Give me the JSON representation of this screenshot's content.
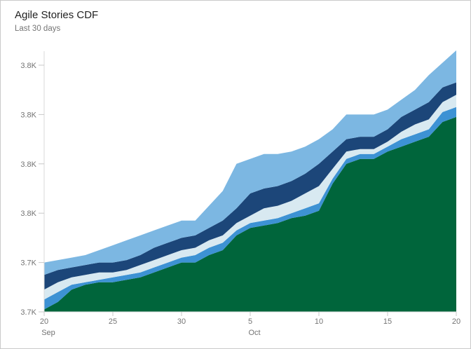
{
  "card": {
    "title": "Agile Stories CDF",
    "subtitle": "Last 30 days"
  },
  "colors": {
    "card_border": "#c9c9c9",
    "title_text": "#212121",
    "subtitle_text": "#757575",
    "axis_line": "#d9d9d9",
    "tick_mark": "#c8c8c8",
    "axis_label": "#737373",
    "background": "#ffffff"
  },
  "chart_data": {
    "type": "area",
    "stacked": true,
    "title": "Agile Stories CDF",
    "subtitle": "Last 30 days",
    "grid": false,
    "legend_position": "none",
    "x": [
      "Sep 20",
      "Sep 21",
      "Sep 22",
      "Sep 23",
      "Sep 24",
      "Sep 25",
      "Sep 26",
      "Sep 27",
      "Sep 28",
      "Sep 29",
      "Sep 30",
      "Oct 1",
      "Oct 2",
      "Oct 3",
      "Oct 4",
      "Oct 5",
      "Oct 6",
      "Oct 7",
      "Oct 8",
      "Oct 9",
      "Oct 10",
      "Oct 11",
      "Oct 12",
      "Oct 13",
      "Oct 14",
      "Oct 15",
      "Oct 16",
      "Oct 17",
      "Oct 18",
      "Oct 19",
      "Oct 20"
    ],
    "y_axis": {
      "min": 3720,
      "max": 3820,
      "ticks": [
        {
          "value": 3720,
          "label": "3.7K"
        },
        {
          "value": 3740,
          "label": "3.7K"
        },
        {
          "value": 3760,
          "label": "3.8K"
        },
        {
          "value": 3780,
          "label": "3.8K"
        },
        {
          "value": 3800,
          "label": "3.8K"
        },
        {
          "value": 3820,
          "label": "3.8K"
        }
      ]
    },
    "x_axis": {
      "ticks": [
        {
          "index": 0,
          "label": "20",
          "sublabel": "Sep"
        },
        {
          "index": 5,
          "label": "25",
          "sublabel": ""
        },
        {
          "index": 10,
          "label": "30",
          "sublabel": ""
        },
        {
          "index": 15,
          "label": "5",
          "sublabel": "Oct"
        },
        {
          "index": 20,
          "label": "10",
          "sublabel": ""
        },
        {
          "index": 25,
          "label": "15",
          "sublabel": ""
        },
        {
          "index": 30,
          "label": "20",
          "sublabel": ""
        }
      ]
    },
    "series_note": "Stacked bottom-to-top; 'cumulative' arrays are the plotted top boundary of each band (cumulative counts).",
    "series": [
      {
        "name": "band-1-dark-green-bottom",
        "color": "#00653B",
        "cumulative": [
          3721,
          3724,
          3729,
          3731,
          3732,
          3732,
          3733,
          3734,
          3736,
          3738,
          3740,
          3740,
          3743,
          3745,
          3751,
          3754,
          3755,
          3756,
          3758,
          3759,
          3761,
          3772,
          3780,
          3782,
          3782,
          3785,
          3787,
          3789,
          3791,
          3797,
          3799
        ]
      },
      {
        "name": "band-2-medium-blue",
        "color": "#3D92D4",
        "cumulative": [
          3725,
          3728,
          3731,
          3732,
          3733,
          3734,
          3735,
          3736,
          3738,
          3740,
          3742,
          3743,
          3746,
          3748,
          3753,
          3756,
          3757,
          3758,
          3760,
          3762,
          3764,
          3774,
          3782,
          3784,
          3784,
          3787,
          3790,
          3792,
          3794,
          3801,
          3803
        ]
      },
      {
        "name": "band-3-pale-blue",
        "color": "#D8E9F1",
        "cumulative": [
          3729,
          3732,
          3734,
          3735,
          3736,
          3736,
          3737,
          3739,
          3741,
          3743,
          3745,
          3746,
          3749,
          3751,
          3756,
          3759,
          3762,
          3763,
          3765,
          3768,
          3771,
          3778,
          3785,
          3786,
          3786,
          3789,
          3793,
          3796,
          3798,
          3805,
          3808
        ]
      },
      {
        "name": "band-4-dark-navy-blue",
        "color": "#1C4679",
        "cumulative": [
          3735,
          3737,
          3738,
          3739,
          3740,
          3740,
          3741,
          3743,
          3746,
          3748,
          3750,
          3751,
          3754,
          3757,
          3762,
          3768,
          3770,
          3771,
          3773,
          3776,
          3780,
          3785,
          3790,
          3791,
          3791,
          3794,
          3799,
          3802,
          3805,
          3811,
          3813
        ]
      },
      {
        "name": "band-5-light-blue-top",
        "color": "#7CB7E2",
        "cumulative": [
          3740,
          3741,
          3742,
          3743,
          3745,
          3747,
          3749,
          3751,
          3753,
          3755,
          3757,
          3757,
          3763,
          3769,
          3780,
          3782,
          3784,
          3784,
          3785,
          3787,
          3790,
          3794,
          3800,
          3800,
          3800,
          3802,
          3806,
          3810,
          3816,
          3821,
          3826
        ]
      }
    ]
  }
}
